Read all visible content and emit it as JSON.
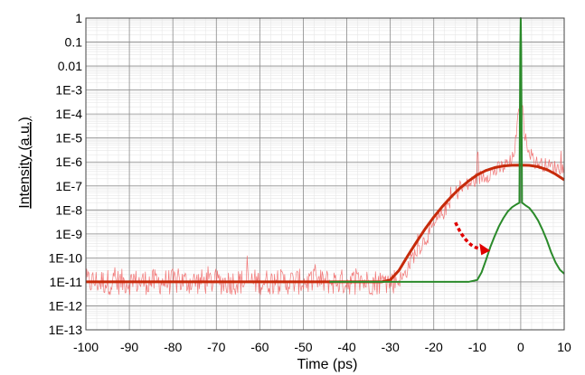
{
  "chart_data": {
    "type": "line",
    "xlabel": "Time (ps)",
    "ylabel": "Intensity (a.u.)",
    "xlim": [
      -100,
      10
    ],
    "ylim_log10": [
      -13,
      0
    ],
    "y_scale": "log",
    "grid": true,
    "x_ticks": [
      -100,
      -90,
      -80,
      -70,
      -60,
      -50,
      -40,
      -30,
      -20,
      -10,
      0,
      10
    ],
    "x_tick_labels": [
      "-100",
      "-90",
      "-80",
      "-70",
      "-60",
      "-50",
      "-40",
      "-30",
      "-20",
      "-10",
      "0",
      "10"
    ],
    "y_ticks": [
      1,
      0.1,
      0.01,
      0.001,
      0.0001,
      1e-05,
      1e-06,
      1e-07,
      1e-08,
      1e-09,
      1e-10,
      1e-11,
      1e-12,
      1e-13
    ],
    "y_tick_labels": [
      "1",
      "0.1",
      "0.01",
      "1E-3",
      "1E-4",
      "1E-5",
      "1E-6",
      "1E-7",
      "1E-8",
      "1E-9",
      "1E-10",
      "1E-11",
      "1E-12",
      "1E-13"
    ],
    "series": [
      {
        "role": "measured-noisy",
        "color": "#f06060",
        "x": [
          -100,
          -50,
          -40,
          -30,
          -27,
          -25,
          -20,
          -15,
          -10,
          -5,
          -2,
          -1,
          -0.5,
          0,
          0.5,
          1,
          3,
          5,
          10
        ],
        "y": [
          1e-11,
          1e-11,
          1e-11,
          1e-11,
          1.5e-11,
          1e-10,
          2e-09,
          5e-08,
          2e-07,
          5e-07,
          1e-06,
          1e-05,
          0.0001,
          0.001,
          0.0001,
          1e-05,
          1e-06,
          8e-07,
          5e-07
        ]
      },
      {
        "role": "fit",
        "color": "#c62a0a",
        "x": [
          -100,
          -40,
          -32,
          -30,
          -28,
          -26,
          -24,
          -22,
          -20,
          -18,
          -16,
          -14,
          -12,
          -10,
          -8,
          -6,
          -4,
          -2,
          0,
          2,
          4,
          6,
          8,
          10
        ],
        "y": [
          1e-11,
          1e-11,
          1e-11,
          1.2e-11,
          3e-11,
          1.2e-10,
          4.5e-10,
          1.6e-09,
          5e-09,
          1.4e-08,
          3.5e-08,
          8e-08,
          1.6e-07,
          2.9e-07,
          4.4e-07,
          5.8e-07,
          6.8e-07,
          7.3e-07,
          7.4e-07,
          7.2e-07,
          6.3e-07,
          4.8e-07,
          3.1e-07,
          1.8e-07
        ]
      },
      {
        "role": "compressed",
        "color": "#2a8a2a",
        "x": [
          -44,
          -20,
          -12,
          -10,
          -9,
          -8,
          -7,
          -6,
          -5,
          -4,
          -3,
          -2,
          -1,
          -0.3,
          -0.1,
          0,
          0.1,
          0.3,
          1,
          2,
          3,
          4,
          5,
          6,
          7,
          8,
          9,
          10
        ],
        "y": [
          1e-11,
          1e-11,
          1e-11,
          1.2e-11,
          2.5e-11,
          8e-11,
          2.8e-10,
          8e-10,
          2.1e-09,
          4.5e-09,
          8.5e-09,
          1.3e-08,
          1.7e-08,
          2e-08,
          0.05,
          1,
          0.05,
          2e-08,
          1.6e-08,
          1.2e-08,
          7e-09,
          3.6e-09,
          1.5e-09,
          5.5e-10,
          1.7e-10,
          6.5e-11,
          3.2e-11,
          2.2e-11
        ]
      }
    ],
    "annotation": {
      "type": "dotted-arrow",
      "color": "#e00000",
      "from": [
        -15,
        3e-09
      ],
      "to": [
        -7,
        2e-10
      ]
    }
  }
}
